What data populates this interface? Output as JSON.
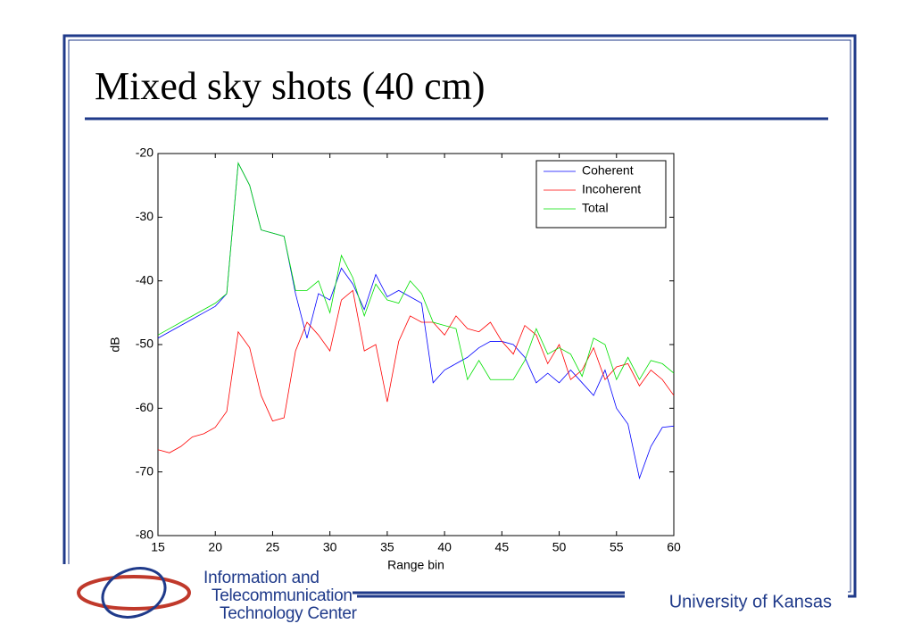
{
  "slide": {
    "title": "Mixed sky shots (40 cm)",
    "footer": "University of Kansas",
    "logo": [
      "Information and",
      "Telecommunication",
      "Technology Center"
    ]
  },
  "chart_data": {
    "type": "line",
    "xlabel": "Range bin",
    "ylabel": "dB",
    "x": [
      15,
      16,
      17,
      18,
      19,
      20,
      21,
      22,
      23,
      24,
      25,
      26,
      27,
      28,
      29,
      30,
      31,
      32,
      33,
      34,
      35,
      36,
      37,
      38,
      39,
      40,
      41,
      42,
      43,
      44,
      45,
      46,
      47,
      48,
      49,
      50,
      51,
      52,
      53,
      54,
      55,
      56,
      57,
      58,
      59,
      60
    ],
    "series": [
      {
        "name": "Coherent",
        "color": "#0000ff",
        "values": [
          -49,
          -48,
          -47,
          -46,
          -45,
          -44,
          -42,
          -21.5,
          -25,
          -32,
          -32.5,
          -33,
          -42,
          -49,
          -42,
          -43,
          -38,
          -40.5,
          -44.5,
          -39,
          -42.5,
          -41.5,
          -42.5,
          -43.5,
          -56,
          -54,
          -53,
          -52,
          -50.5,
          -49.5,
          -49.5,
          -50,
          -52,
          -56,
          -54.5,
          -56,
          -54,
          -56,
          -58,
          -54,
          -60,
          -62.5,
          -71,
          -66,
          -63,
          -62.8
        ]
      },
      {
        "name": "Incoherent",
        "color": "#ff0000",
        "values": [
          -66.5,
          -67,
          -66,
          -64.5,
          -64,
          -63,
          -60.5,
          -48,
          -50.5,
          -58,
          -62,
          -61.5,
          -51,
          -46.5,
          -48.5,
          -51,
          -43,
          -41.5,
          -51,
          -50,
          -59,
          -49.5,
          -45.5,
          -46.5,
          -46.5,
          -48.5,
          -45.5,
          -47.5,
          -48,
          -46.5,
          -49.5,
          -51.5,
          -47,
          -48.5,
          -53,
          -50,
          -55.5,
          -54,
          -50.5,
          -55.5,
          -53.5,
          -53,
          -56.5,
          -54,
          -55.5,
          -58
        ]
      },
      {
        "name": "Total",
        "color": "#00e000",
        "values": [
          -48.5,
          -47.5,
          -46.5,
          -45.5,
          -44.5,
          -43.5,
          -42,
          -21.5,
          -25,
          -32,
          -32.5,
          -33,
          -41.5,
          -41.5,
          -40,
          -45,
          -36,
          -39.5,
          -45.5,
          -40.5,
          -43,
          -43.5,
          -40,
          -42,
          -46.5,
          -47,
          -47.5,
          -55.5,
          -52.5,
          -55.5,
          -55.5,
          -55.5,
          -52.5,
          -47.5,
          -51.5,
          -50.5,
          -51.5,
          -55,
          -49,
          -50,
          -55.5,
          -52,
          -55.5,
          -52.5,
          -53,
          -54.5
        ]
      }
    ],
    "xlim": [
      15,
      60
    ],
    "xticks": [
      15,
      20,
      25,
      30,
      35,
      40,
      45,
      50,
      55,
      60
    ],
    "ylim": [
      -80,
      -20
    ],
    "yticks": [
      -80,
      -70,
      -60,
      -50,
      -40,
      -30,
      -20
    ],
    "legend": "upper right"
  }
}
